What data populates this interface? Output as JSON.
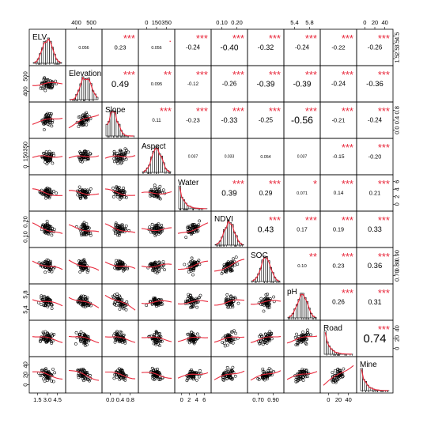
{
  "chart_data": {
    "type": "scatter-matrix",
    "variables": [
      "ELV",
      "Elevation",
      "Slope",
      "Aspect",
      "Water",
      "NDVI",
      "SOC",
      "pH",
      "Road",
      "Mine"
    ],
    "top_axis_ticks": {
      "Elevation": [
        "400",
        "500"
      ],
      "Aspect": [
        "0",
        "150",
        "350"
      ],
      "NDVI": [
        "0.10",
        "0.20"
      ],
      "pH": [
        "5.4",
        "5.8"
      ],
      "Mine": [
        "0",
        "20",
        "40"
      ]
    },
    "bottom_axis_ticks": {
      "ELV": [
        "1.5",
        "3.0",
        "4.5"
      ],
      "Slope": [
        "0.0",
        "0.4",
        "0.8"
      ],
      "Water": [
        "0",
        "2",
        "4",
        "6"
      ],
      "SOC": [
        "0.70",
        "0.90"
      ],
      "Road": [
        "0",
        "20",
        "40"
      ]
    },
    "right_axis_ticks": {
      "ELV": [
        "1.5",
        "2.5",
        "3.5",
        "4.5"
      ],
      "Slope": [
        "0.0",
        "0.4",
        "0.8"
      ],
      "Water": [
        "0",
        "2",
        "4",
        "6"
      ],
      "SOC": [
        "0.70",
        "0.80",
        "0.90"
      ],
      "Road": [
        "0",
        "20",
        "40"
      ]
    },
    "left_axis_ticks": {
      "Elevation": [
        "400",
        "500"
      ],
      "Aspect": [
        "0",
        "150",
        "350"
      ],
      "NDVI": [
        "0.10",
        "0.20"
      ],
      "pH": [
        "5.4",
        "5.8"
      ],
      "Mine": [
        "0",
        "20",
        "40"
      ]
    },
    "correlations": [
      {
        "row": 0,
        "col": 1,
        "r": "0.056",
        "stars": ""
      },
      {
        "row": 0,
        "col": 2,
        "r": "0.23",
        "stars": "***"
      },
      {
        "row": 0,
        "col": 3,
        "r": "0.056",
        "stars": "."
      },
      {
        "row": 0,
        "col": 4,
        "r": "-0.24",
        "stars": "***"
      },
      {
        "row": 0,
        "col": 5,
        "r": "-0.40",
        "stars": "***"
      },
      {
        "row": 0,
        "col": 6,
        "r": "-0.32",
        "stars": "***"
      },
      {
        "row": 0,
        "col": 7,
        "r": "-0.24",
        "stars": "***"
      },
      {
        "row": 0,
        "col": 8,
        "r": "-0.22",
        "stars": "***"
      },
      {
        "row": 0,
        "col": 9,
        "r": "-0.26",
        "stars": "***"
      },
      {
        "row": 1,
        "col": 2,
        "r": "0.49",
        "stars": "***"
      },
      {
        "row": 1,
        "col": 3,
        "r": "0.095",
        "stars": "**"
      },
      {
        "row": 1,
        "col": 4,
        "r": "-0.12",
        "stars": "***"
      },
      {
        "row": 1,
        "col": 5,
        "r": "-0.26",
        "stars": "***"
      },
      {
        "row": 1,
        "col": 6,
        "r": "-0.39",
        "stars": "***"
      },
      {
        "row": 1,
        "col": 7,
        "r": "-0.39",
        "stars": "***"
      },
      {
        "row": 1,
        "col": 8,
        "r": "-0.24",
        "stars": "***"
      },
      {
        "row": 1,
        "col": 9,
        "r": "-0.36",
        "stars": "***"
      },
      {
        "row": 2,
        "col": 3,
        "r": "0.11",
        "stars": "***"
      },
      {
        "row": 2,
        "col": 4,
        "r": "-0.23",
        "stars": "***"
      },
      {
        "row": 2,
        "col": 5,
        "r": "-0.33",
        "stars": "***"
      },
      {
        "row": 2,
        "col": 6,
        "r": "-0.25",
        "stars": "***"
      },
      {
        "row": 2,
        "col": 7,
        "r": "-0.56",
        "stars": "***"
      },
      {
        "row": 2,
        "col": 8,
        "r": "-0.21",
        "stars": "***"
      },
      {
        "row": 2,
        "col": 9,
        "r": "-0.24",
        "stars": "***"
      },
      {
        "row": 3,
        "col": 4,
        "r": "0.037",
        "stars": ""
      },
      {
        "row": 3,
        "col": 5,
        "r": "0.033",
        "stars": ""
      },
      {
        "row": 3,
        "col": 6,
        "r": "0.054",
        "stars": ""
      },
      {
        "row": 3,
        "col": 7,
        "r": "0.037",
        "stars": ""
      },
      {
        "row": 3,
        "col": 8,
        "r": "-0.15",
        "stars": "***"
      },
      {
        "row": 3,
        "col": 9,
        "r": "-0.20",
        "stars": "***"
      },
      {
        "row": 4,
        "col": 5,
        "r": "0.39",
        "stars": "***"
      },
      {
        "row": 4,
        "col": 6,
        "r": "0.29",
        "stars": "***"
      },
      {
        "row": 4,
        "col": 7,
        "r": "0.071",
        "stars": "*"
      },
      {
        "row": 4,
        "col": 8,
        "r": "0.14",
        "stars": "***"
      },
      {
        "row": 4,
        "col": 9,
        "r": "0.21",
        "stars": "***"
      },
      {
        "row": 5,
        "col": 6,
        "r": "0.43",
        "stars": "***"
      },
      {
        "row": 5,
        "col": 7,
        "r": "0.17",
        "stars": "***"
      },
      {
        "row": 5,
        "col": 8,
        "r": "0.19",
        "stars": "***"
      },
      {
        "row": 5,
        "col": 9,
        "r": "0.33",
        "stars": "***"
      },
      {
        "row": 6,
        "col": 7,
        "r": "0.10",
        "stars": "**"
      },
      {
        "row": 6,
        "col": 8,
        "r": "0.23",
        "stars": "***"
      },
      {
        "row": 6,
        "col": 9,
        "r": "0.36",
        "stars": "***"
      },
      {
        "row": 7,
        "col": 8,
        "r": "0.26",
        "stars": "***"
      },
      {
        "row": 7,
        "col": 9,
        "r": "0.31",
        "stars": "***"
      },
      {
        "row": 8,
        "col": 9,
        "r": "0.74",
        "stars": "***"
      }
    ],
    "histogram_shapes": [
      "normal",
      "left-skew",
      "right-skew",
      "normal",
      "exponential",
      "normal",
      "normal",
      "normal",
      "exponential",
      "exponential"
    ],
    "colors": {
      "points": "#000000",
      "smooth": "#e8293c",
      "stars": "#e8293c",
      "bars": "#ffffff"
    }
  }
}
